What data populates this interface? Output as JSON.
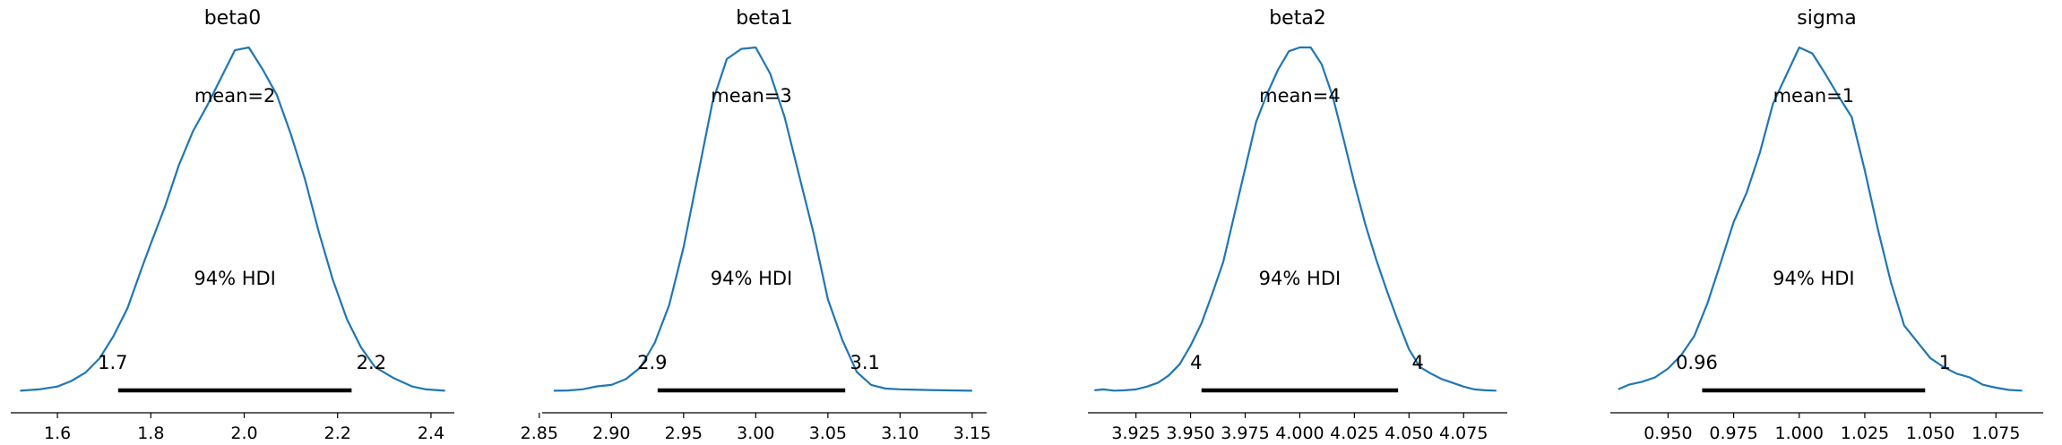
{
  "chart_data": [
    {
      "type": "line",
      "title": "beta0",
      "xlim": [
        1.5,
        2.45
      ],
      "ticks": [
        1.6,
        1.8,
        2.0,
        2.2,
        2.4
      ],
      "tick_labels": [
        "1.6",
        "1.8",
        "2.0",
        "2.2",
        "2.4"
      ],
      "mean_label": "mean=2",
      "hdi_label": "94% HDI",
      "hdi_low": 1.73,
      "hdi_high": 2.23,
      "hdi_low_label": "1.7",
      "hdi_high_label": "2.2",
      "series": [
        {
          "x": [
            1.52,
            1.56,
            1.6,
            1.63,
            1.66,
            1.69,
            1.72,
            1.75,
            1.78,
            1.8,
            1.83,
            1.86,
            1.89,
            1.92,
            1.95,
            1.98,
            2.01,
            2.04,
            2.07,
            2.1,
            2.13,
            2.16,
            2.19,
            2.22,
            2.25,
            2.28,
            2.32,
            2.36,
            2.39,
            2.43
          ],
          "y": [
            0.005,
            0.01,
            0.02,
            0.04,
            0.07,
            0.12,
            0.2,
            0.3,
            0.44,
            0.53,
            0.66,
            0.81,
            0.93,
            1.02,
            1.12,
            1.22,
            1.23,
            1.15,
            1.06,
            0.92,
            0.76,
            0.57,
            0.4,
            0.26,
            0.16,
            0.09,
            0.05,
            0.02,
            0.01,
            0.005
          ]
        }
      ]
    },
    {
      "type": "line",
      "title": "beta1",
      "xlim": [
        2.852,
        3.16
      ],
      "ticks": [
        2.85,
        2.9,
        2.95,
        3.0,
        3.05,
        3.1,
        3.15
      ],
      "tick_labels": [
        "2.85",
        "2.90",
        "2.95",
        "3.00",
        "3.05",
        "3.10",
        "3.15"
      ],
      "mean_label": "mean=3",
      "hdi_label": "94% HDI",
      "hdi_low": 2.932,
      "hdi_high": 3.062,
      "hdi_low_label": "2.9",
      "hdi_high_label": "3.1",
      "series": [
        {
          "x": [
            2.86,
            2.87,
            2.88,
            2.89,
            2.9,
            2.91,
            2.92,
            2.93,
            2.94,
            2.95,
            2.96,
            2.97,
            2.98,
            2.99,
            3.0,
            3.01,
            3.02,
            3.03,
            3.04,
            3.05,
            3.06,
            3.07,
            3.08,
            3.09,
            3.1,
            3.12,
            3.14,
            3.15
          ],
          "y": [
            0.01,
            0.012,
            0.02,
            0.04,
            0.05,
            0.09,
            0.17,
            0.34,
            0.6,
            1.0,
            1.5,
            2.0,
            2.3,
            2.37,
            2.38,
            2.2,
            1.9,
            1.5,
            1.1,
            0.64,
            0.36,
            0.14,
            0.05,
            0.025,
            0.02,
            0.015,
            0.012,
            0.01
          ]
        }
      ]
    },
    {
      "type": "line",
      "title": "beta2",
      "xlim": [
        3.903,
        4.095
      ],
      "ticks": [
        3.925,
        3.95,
        3.975,
        4.0,
        4.025,
        4.05,
        4.075
      ],
      "tick_labels": [
        "3.925",
        "3.950",
        "3.975",
        "4.000",
        "4.025",
        "4.050",
        "4.075"
      ],
      "mean_label": "mean=4",
      "hdi_label": "94% HDI",
      "hdi_low": 3.955,
      "hdi_high": 4.045,
      "hdi_low_label": "4",
      "hdi_high_label": "4",
      "series": [
        {
          "x": [
            3.906,
            3.91,
            3.915,
            3.92,
            3.925,
            3.93,
            3.935,
            3.94,
            3.945,
            3.95,
            3.955,
            3.96,
            3.965,
            3.97,
            3.975,
            3.98,
            3.985,
            3.99,
            3.995,
            4.0,
            4.005,
            4.01,
            4.015,
            4.02,
            4.025,
            4.03,
            4.035,
            4.04,
            4.045,
            4.05,
            4.055,
            4.06,
            4.065,
            4.07,
            4.075,
            4.08,
            4.085,
            4.09
          ],
          "y": [
            0.1,
            0.15,
            0.08,
            0.1,
            0.15,
            0.3,
            0.5,
            0.9,
            1.5,
            2.5,
            3.7,
            5.3,
            7.0,
            9.5,
            12.0,
            14.5,
            16.0,
            17.3,
            18.3,
            18.5,
            18.5,
            17.6,
            15.9,
            13.6,
            11.2,
            9.0,
            7.1,
            5.4,
            3.8,
            2.3,
            1.35,
            1.0,
            0.7,
            0.5,
            0.3,
            0.15,
            0.1,
            0.08
          ]
        }
      ]
    },
    {
      "type": "line",
      "title": "sigma",
      "xlim": [
        0.928,
        1.093
      ],
      "ticks": [
        0.95,
        0.975,
        1.0,
        1.025,
        1.05,
        1.075
      ],
      "tick_labels": [
        "0.950",
        "0.975",
        "1.000",
        "1.025",
        "1.050",
        "1.075"
      ],
      "mean_label": "mean=1",
      "hdi_label": "94% HDI",
      "hdi_low": 0.963,
      "hdi_high": 1.048,
      "hdi_low_label": "0.96",
      "hdi_high_label": "1",
      "series": [
        {
          "x": [
            0.931,
            0.935,
            0.94,
            0.945,
            0.95,
            0.955,
            0.96,
            0.965,
            0.97,
            0.975,
            0.98,
            0.985,
            0.99,
            0.995,
            1.0,
            1.005,
            1.01,
            1.015,
            1.02,
            1.025,
            1.03,
            1.035,
            1.04,
            1.045,
            1.05,
            1.055,
            1.06,
            1.065,
            1.07,
            1.075,
            1.08,
            1.085
          ],
          "y": [
            0.2,
            0.5,
            0.7,
            1.0,
            1.6,
            2.5,
            3.8,
            6.0,
            8.7,
            11.5,
            13.5,
            16.2,
            19.5,
            21.4,
            23.3,
            22.9,
            21.5,
            20.0,
            18.6,
            15.0,
            11.0,
            7.4,
            4.5,
            3.4,
            2.3,
            1.7,
            1.25,
            1.0,
            0.5,
            0.3,
            0.15,
            0.1
          ]
        }
      ]
    }
  ]
}
